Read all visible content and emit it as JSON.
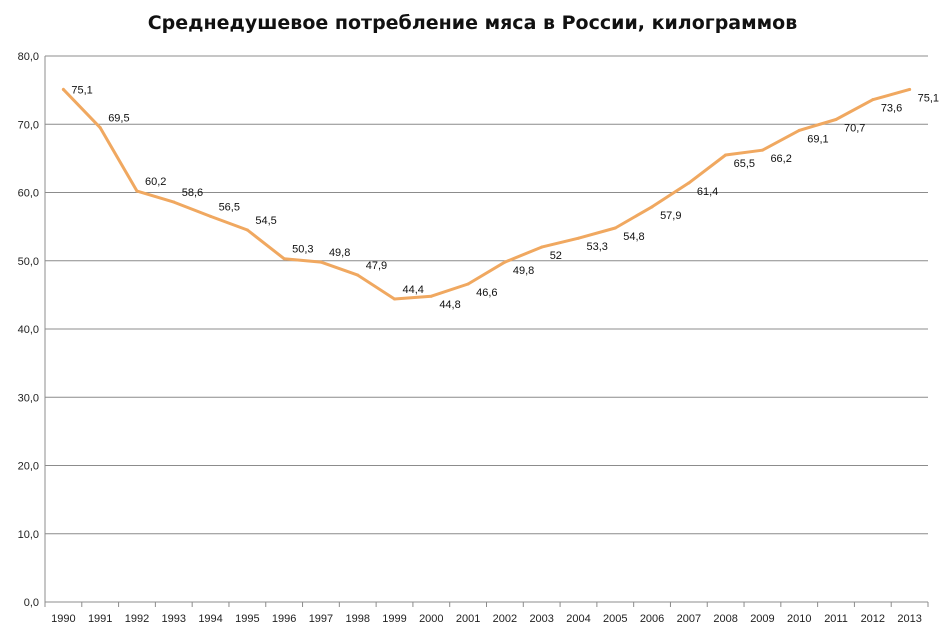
{
  "chart_data": {
    "type": "line",
    "title": "Среднедушевое потребление мяса в России, килограммов",
    "xlabel": "",
    "ylabel": "",
    "ylim": [
      0,
      80
    ],
    "yticks": [
      "0,0",
      "10,0",
      "20,0",
      "30,0",
      "40,0",
      "50,0",
      "60,0",
      "70,0",
      "80,0"
    ],
    "ytick_values": [
      0,
      10,
      20,
      30,
      40,
      50,
      60,
      70,
      80
    ],
    "grid": "horizontal",
    "legend": "none",
    "line_color": "#F0A860",
    "categories": [
      "1990",
      "1991",
      "1992",
      "1993",
      "1994",
      "1995",
      "1996",
      "1997",
      "1998",
      "1999",
      "2000",
      "2001",
      "2002",
      "2003",
      "2004",
      "2005",
      "2006",
      "2007",
      "2008",
      "2009",
      "2010",
      "2011",
      "2012",
      "2013"
    ],
    "values": [
      75.1,
      69.5,
      60.2,
      58.6,
      56.5,
      54.5,
      50.3,
      49.8,
      47.9,
      44.4,
      44.8,
      46.6,
      49.8,
      52,
      53.3,
      54.8,
      57.9,
      61.4,
      65.5,
      66.2,
      69.1,
      70.7,
      73.6,
      75.1
    ],
    "data_labels": [
      "75,1",
      "69,5",
      "60,2",
      "58,6",
      "56,5",
      "54,5",
      "50,3",
      "49,8",
      "47,9",
      "44,4",
      "44,8",
      "46,6",
      "49,8",
      "52",
      "53,3",
      "54,8",
      "57,9",
      "61,4",
      "65,5",
      "66,2",
      "69,1",
      "70,7",
      "73,6",
      "75,1"
    ]
  }
}
